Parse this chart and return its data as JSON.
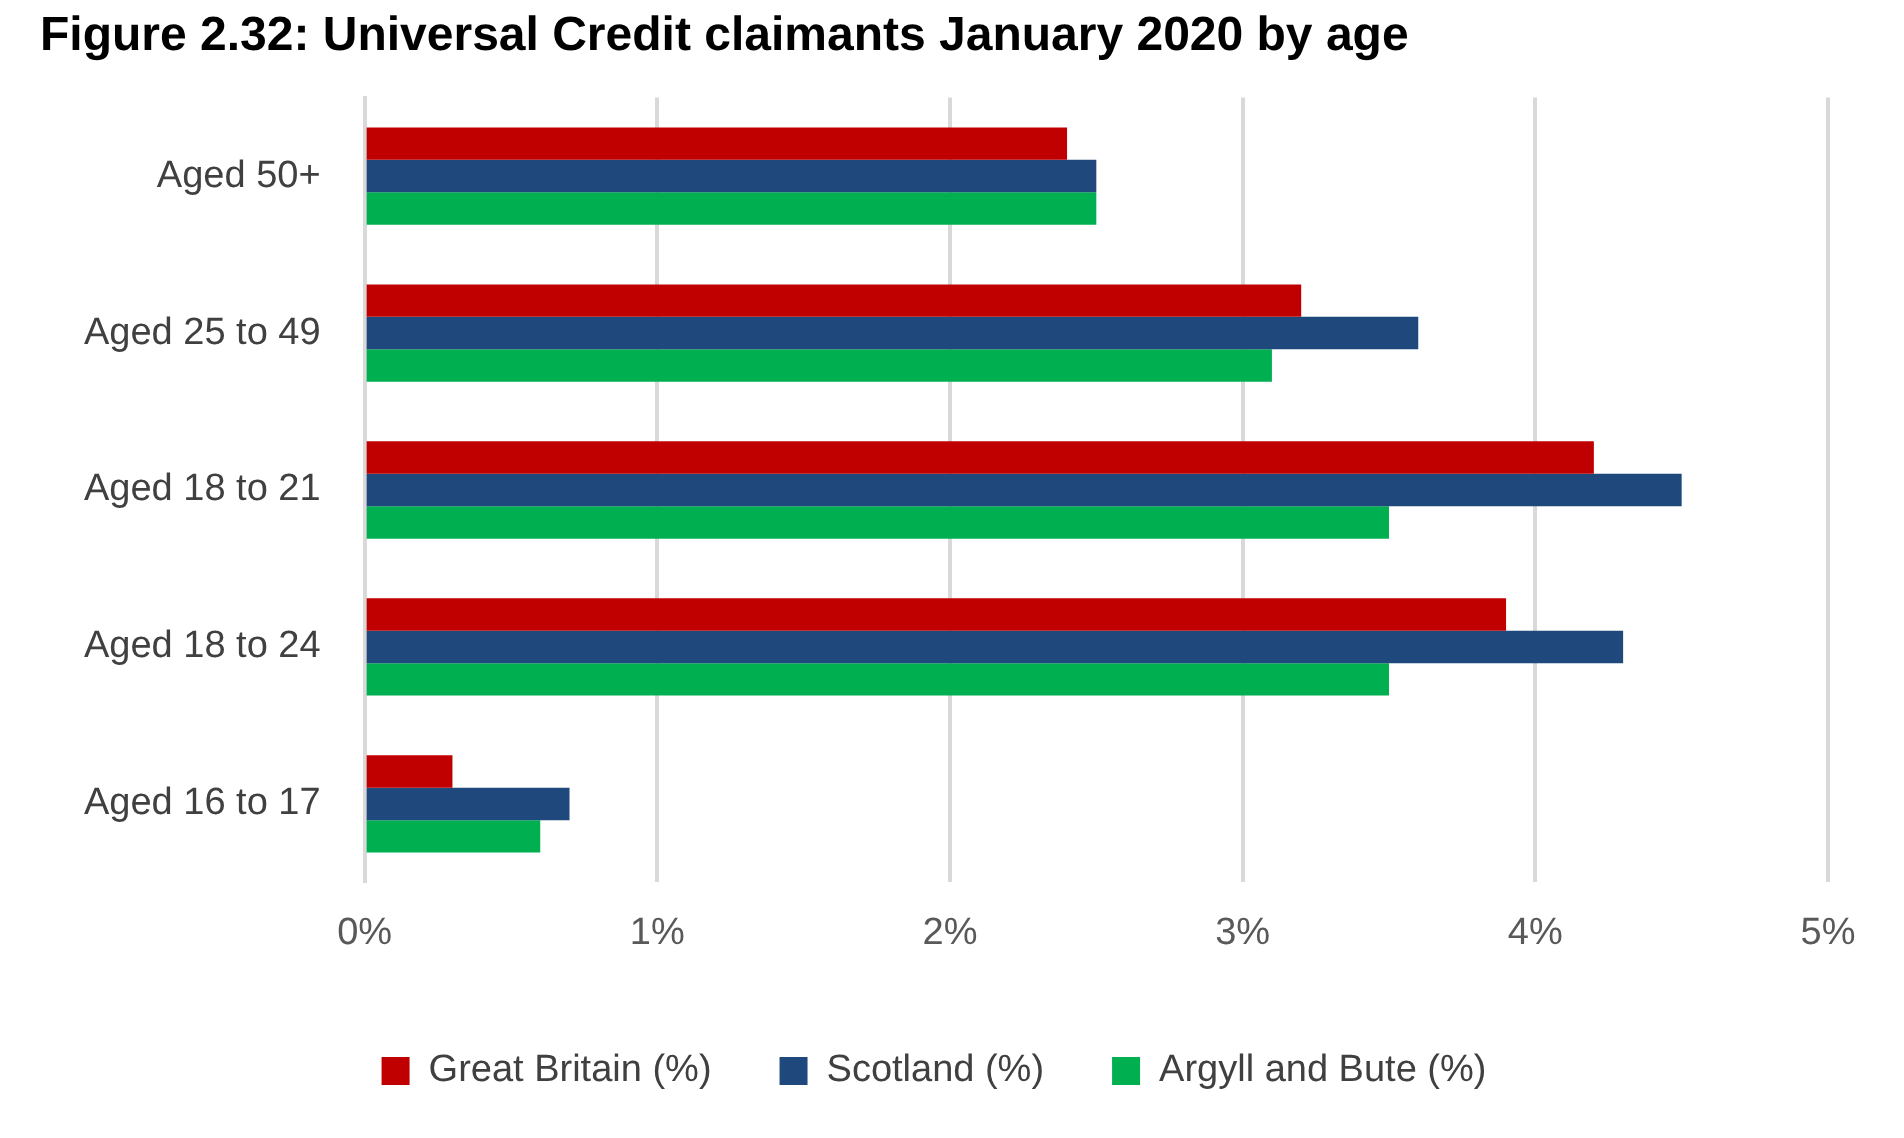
{
  "chart_data": {
    "type": "bar",
    "orientation": "horizontal",
    "title": "Figure 2.32: Universal Credit claimants January 2020 by age",
    "categories": [
      "Aged 50+",
      "Aged 25 to 49",
      "Aged 18 to 21",
      "Aged 18 to 24",
      "Aged 16 to 17"
    ],
    "series": [
      {
        "name": "Great Britain (%)",
        "color": "#c00000",
        "values": [
          2.4,
          3.2,
          4.2,
          3.9,
          0.3
        ]
      },
      {
        "name": "Scotland (%)",
        "color": "#1f497d",
        "values": [
          2.5,
          3.6,
          4.5,
          4.3,
          0.7
        ]
      },
      {
        "name": "Argyll and Bute (%)",
        "color": "#00b050",
        "values": [
          2.5,
          3.1,
          3.5,
          3.5,
          0.6
        ]
      }
    ],
    "xlim": [
      0,
      5
    ],
    "xticks": [
      {
        "value": 0,
        "label": "0%"
      },
      {
        "value": 1,
        "label": "1%"
      },
      {
        "value": 2,
        "label": "2%"
      },
      {
        "value": 3,
        "label": "3%"
      },
      {
        "value": 4,
        "label": "4%"
      },
      {
        "value": 5,
        "label": "5%"
      }
    ],
    "grid": "x",
    "legend": "bottom"
  }
}
